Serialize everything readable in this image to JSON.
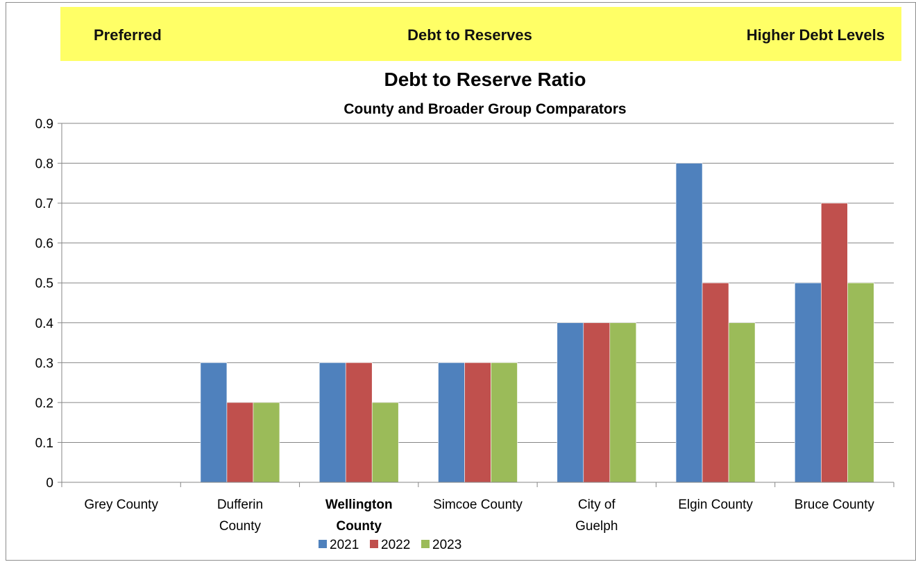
{
  "banner": {
    "left": "Preferred",
    "center": "Debt to Reserves",
    "right": "Higher Debt Levels",
    "color": "#FFFF66"
  },
  "chart_data": {
    "type": "bar",
    "title": "Debt to Reserve Ratio",
    "subtitle": "County and Broader Group Comparators",
    "xlabel": "",
    "ylabel": "",
    "ylim": [
      0,
      0.9
    ],
    "yticks": [
      "0",
      "0.1",
      "0.2",
      "0.3",
      "0.4",
      "0.5",
      "0.6",
      "0.7",
      "0.8",
      "0.9"
    ],
    "grid": true,
    "legend_position": "bottom",
    "categories": [
      [
        "Grey County"
      ],
      [
        "Dufferin",
        "County"
      ],
      [
        "Wellington",
        "County"
      ],
      [
        "Simcoe County"
      ],
      [
        "City of",
        "Guelph"
      ],
      [
        "Elgin County"
      ],
      [
        "Bruce County"
      ]
    ],
    "highlight_category": 2,
    "series": [
      {
        "name": "2021",
        "color": "#4F81BD",
        "values": [
          0,
          0.3,
          0.3,
          0.3,
          0.4,
          0.8,
          0.5
        ]
      },
      {
        "name": "2022",
        "color": "#C0504D",
        "values": [
          0,
          0.2,
          0.3,
          0.3,
          0.4,
          0.5,
          0.7
        ]
      },
      {
        "name": "2023",
        "color": "#9BBB59",
        "values": [
          0,
          0.2,
          0.2,
          0.3,
          0.4,
          0.4,
          0.5
        ]
      }
    ]
  }
}
